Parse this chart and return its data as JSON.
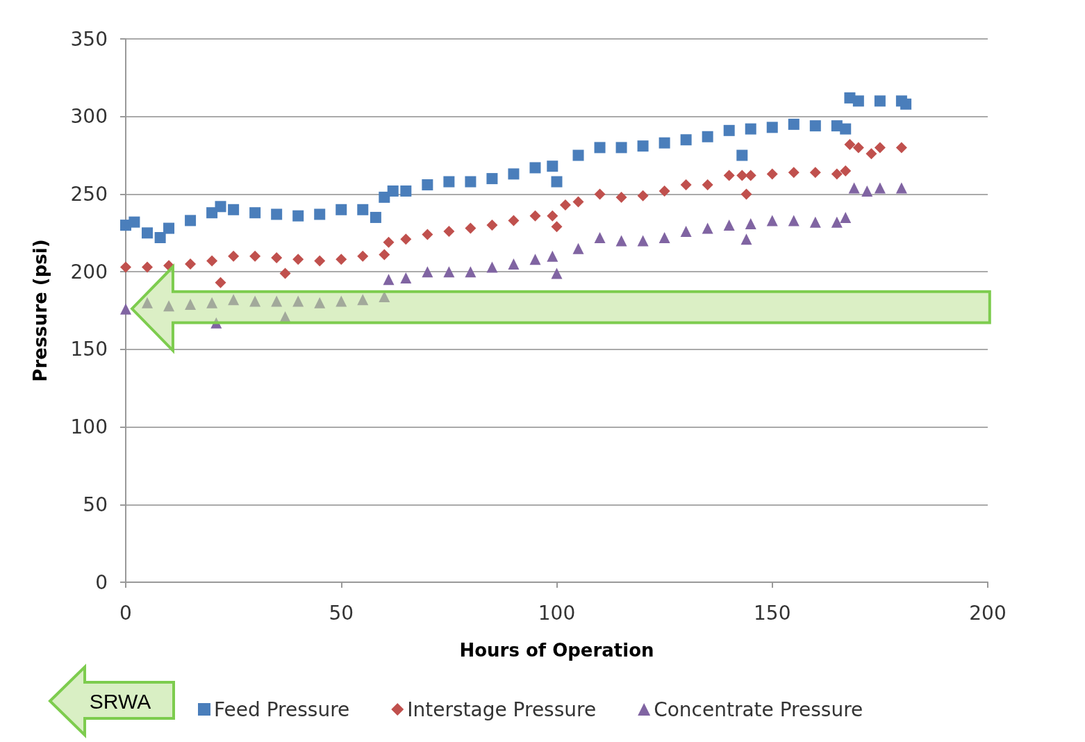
{
  "chart_data": {
    "type": "scatter",
    "xlabel": "Hours of Operation",
    "ylabel": "Pressure (psi)",
    "xlim": [
      0,
      200
    ],
    "xticks": [
      0,
      50,
      100,
      150,
      200
    ],
    "ylim": [
      0,
      350
    ],
    "yticks": [
      0,
      50,
      100,
      150,
      200,
      250,
      300,
      350
    ],
    "grid": "y",
    "legend": "bottom",
    "annotations": [
      "SRWA"
    ],
    "series": [
      {
        "name": "Feed Pressure",
        "color": "#4a7ebb",
        "marker": "square",
        "x": [
          0,
          2,
          5,
          8,
          10,
          15,
          20,
          22,
          25,
          30,
          35,
          40,
          45,
          50,
          55,
          58,
          60,
          62,
          65,
          70,
          75,
          80,
          85,
          90,
          95,
          99,
          100,
          105,
          110,
          115,
          120,
          125,
          130,
          135,
          140,
          143,
          145,
          150,
          155,
          160,
          165,
          167,
          168,
          170,
          175,
          180,
          181
        ],
        "values": [
          230,
          232,
          225,
          222,
          228,
          233,
          238,
          242,
          240,
          238,
          237,
          236,
          237,
          240,
          240,
          235,
          248,
          252,
          252,
          256,
          258,
          258,
          260,
          263,
          267,
          268,
          258,
          275,
          280,
          280,
          281,
          283,
          285,
          287,
          291,
          275,
          292,
          293,
          295,
          294,
          294,
          292,
          312,
          310,
          310,
          310,
          308
        ]
      },
      {
        "name": "Interstage Pressure",
        "color": "#c0504d",
        "marker": "diamond",
        "x": [
          0,
          5,
          10,
          15,
          20,
          22,
          25,
          30,
          35,
          37,
          40,
          45,
          50,
          55,
          60,
          61,
          65,
          70,
          75,
          80,
          85,
          90,
          95,
          99,
          100,
          102,
          105,
          110,
          115,
          120,
          125,
          130,
          135,
          140,
          143,
          144,
          145,
          150,
          155,
          160,
          165,
          167,
          168,
          170,
          173,
          175,
          180
        ],
        "values": [
          203,
          203,
          204,
          205,
          207,
          193,
          210,
          210,
          209,
          199,
          208,
          207,
          208,
          210,
          211,
          219,
          221,
          224,
          226,
          228,
          230,
          233,
          236,
          236,
          229,
          243,
          245,
          250,
          248,
          249,
          252,
          256,
          256,
          262,
          262,
          250,
          262,
          263,
          264,
          264,
          263,
          265,
          282,
          280,
          276,
          280,
          280
        ]
      },
      {
        "name": "Concentrate Pressure",
        "color": "#8064a2",
        "marker": "triangle",
        "x": [
          0,
          5,
          10,
          15,
          20,
          21,
          25,
          30,
          35,
          37,
          40,
          45,
          50,
          55,
          60,
          61,
          65,
          70,
          75,
          80,
          85,
          90,
          95,
          99,
          100,
          105,
          110,
          115,
          120,
          125,
          130,
          135,
          140,
          144,
          145,
          150,
          155,
          160,
          165,
          167,
          169,
          172,
          175,
          180
        ],
        "values": [
          176,
          180,
          178,
          179,
          180,
          167,
          182,
          181,
          181,
          171,
          181,
          180,
          181,
          182,
          184,
          195,
          196,
          200,
          200,
          200,
          203,
          205,
          208,
          210,
          199,
          215,
          222,
          220,
          220,
          222,
          226,
          228,
          230,
          221,
          231,
          233,
          233,
          232,
          232,
          235,
          254,
          252,
          254,
          254
        ]
      }
    ]
  }
}
